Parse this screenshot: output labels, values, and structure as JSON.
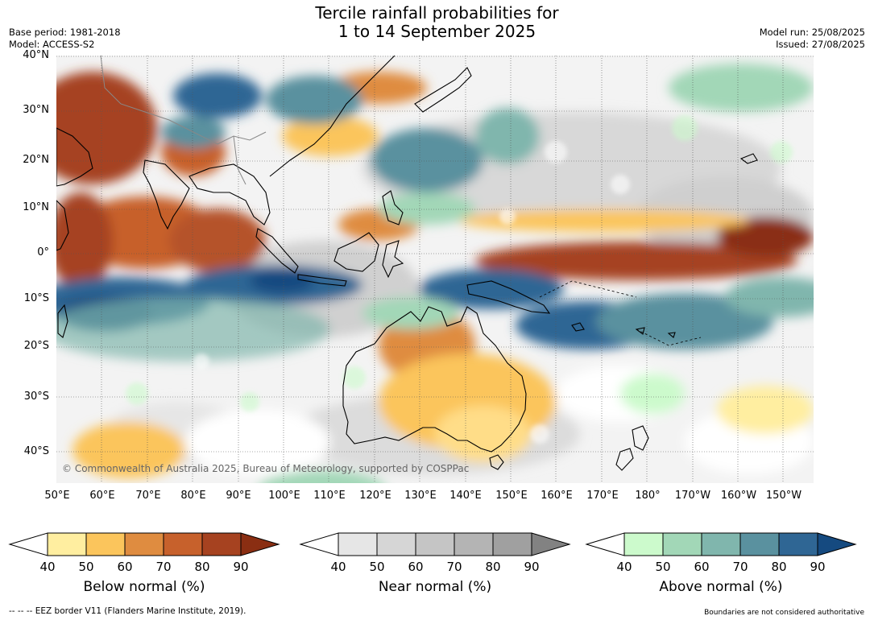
{
  "title": {
    "line1": "Tercile rainfall probabilities for",
    "line2": "1 to 14 September 2025"
  },
  "meta_left": {
    "base_period": "Base period: 1981-2018",
    "model": "Model: ACCESS-S2"
  },
  "meta_right": {
    "model_run": "Model run: 25/08/2025",
    "issued": "Issued: 27/08/2025"
  },
  "latitude_labels": [
    "40°N",
    "30°N",
    "20°N",
    "10°N",
    "0°",
    "10°S",
    "20°S",
    "30°S",
    "40°S"
  ],
  "longitude_labels": [
    "50°E",
    "60°E",
    "70°E",
    "80°E",
    "90°E",
    "100°E",
    "110°E",
    "120°E",
    "130°E",
    "140°E",
    "150°E",
    "160°E",
    "170°E",
    "180°",
    "170°W",
    "160°W",
    "150°W"
  ],
  "copyright": "© Commonwealth of Australia 2025, Bureau of Meteorology, supported by COSPPac",
  "colorbars": [
    {
      "label": "Below normal (%)",
      "ticks": [
        "40",
        "50",
        "60",
        "70",
        "80",
        "90"
      ],
      "colors": [
        "#ffeea0",
        "#fbc55c",
        "#df8c40",
        "#c7612c",
        "#a64220",
        "#8a2e12"
      ]
    },
    {
      "label": "Near normal (%)",
      "ticks": [
        "40",
        "50",
        "60",
        "70",
        "80",
        "90"
      ],
      "colors": [
        "#e6e6e6",
        "#d6d6d6",
        "#c5c5c5",
        "#b4b4b4",
        "#a0a0a0",
        "#828282"
      ]
    },
    {
      "label": "Above normal (%)",
      "ticks": [
        "40",
        "50",
        "60",
        "70",
        "80",
        "90"
      ],
      "colors": [
        "#ccfacc",
        "#a2d7b7",
        "#80b6ad",
        "#5a919f",
        "#2f6694",
        "#154a80"
      ]
    }
  ],
  "footer_left": "--  --  -- EEZ border V11 (Flanders Marine Institute, 2019).",
  "footer_right": "Boundaries are not considered authoritative"
}
